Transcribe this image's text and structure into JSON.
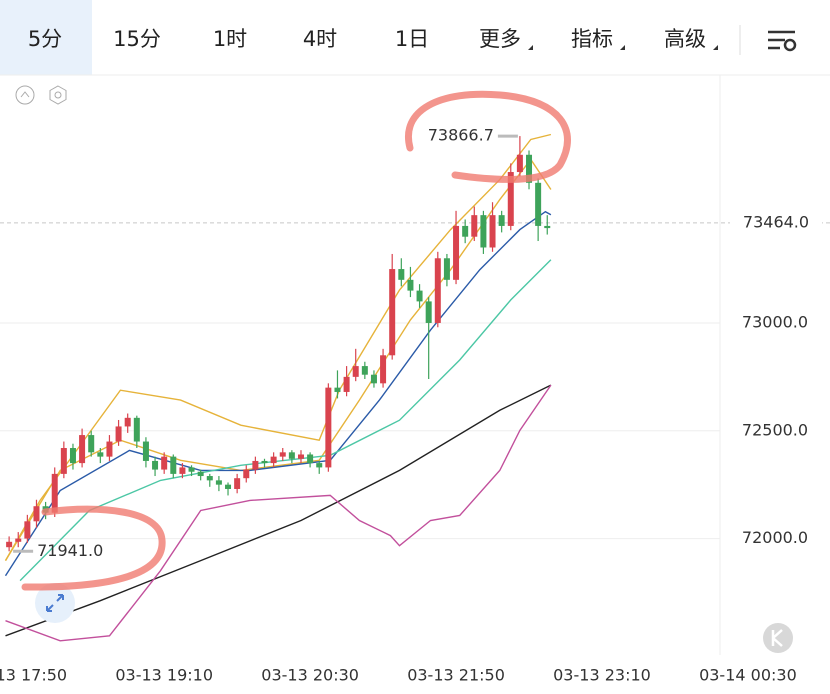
{
  "toolbar": {
    "tabs": [
      "5分",
      "15分",
      "1时",
      "4时",
      "1日",
      "更多",
      "指标",
      "高级"
    ],
    "active": 0
  },
  "chart_data": {
    "type": "candlestick",
    "x": [
      -5,
      0,
      5,
      10,
      15,
      20,
      25,
      30,
      35,
      40,
      45,
      50,
      55,
      60,
      65,
      70,
      75,
      80,
      85,
      90,
      95,
      100,
      105,
      110,
      115,
      120,
      125,
      130,
      135,
      140,
      145,
      150,
      155,
      160,
      165,
      170,
      175,
      180,
      185,
      190,
      195,
      200,
      205,
      210,
      215,
      220,
      225,
      230,
      235,
      240,
      245,
      250,
      255,
      260,
      265,
      270,
      275,
      280,
      285,
      290
    ],
    "open": [
      71960,
      71985,
      72000,
      72080,
      72150,
      72120,
      72300,
      72420,
      72350,
      72480,
      72400,
      72380,
      72450,
      72520,
      72560,
      72450,
      72360,
      72320,
      72380,
      72300,
      72330,
      72310,
      72290,
      72270,
      72250,
      72230,
      72280,
      72320,
      72360,
      72350,
      72380,
      72400,
      72370,
      72390,
      72350,
      72330,
      72700,
      72680,
      72750,
      72800,
      72760,
      72720,
      72850,
      73250,
      73200,
      73150,
      73100,
      73000,
      73300,
      73200,
      73450,
      73400,
      73500,
      73350,
      73500,
      73450,
      73700,
      73780,
      73650,
      73450
    ],
    "high": [
      72010,
      72030,
      72110,
      72180,
      72170,
      72330,
      72450,
      72440,
      72510,
      72500,
      72420,
      72480,
      72550,
      72580,
      72570,
      72470,
      72380,
      72400,
      72390,
      72350,
      72340,
      72320,
      72300,
      72290,
      72260,
      72300,
      72340,
      72380,
      72370,
      72400,
      72420,
      72410,
      72410,
      72400,
      72360,
      72720,
      72780,
      72800,
      72880,
      72820,
      72780,
      72880,
      73320,
      73300,
      73260,
      73180,
      73120,
      73330,
      73320,
      73520,
      73480,
      73540,
      73520,
      73560,
      73520,
      73740,
      73866.7,
      73800,
      73670,
      73500
    ],
    "low": [
      71941.0,
      71960,
      71980,
      72050,
      72090,
      72100,
      72280,
      72320,
      72330,
      72380,
      72350,
      72360,
      72430,
      72490,
      72420,
      72330,
      72290,
      72300,
      72280,
      72280,
      72290,
      72270,
      72240,
      72220,
      72200,
      72210,
      72260,
      72300,
      72330,
      72330,
      72360,
      72350,
      72350,
      72330,
      72300,
      72310,
      72650,
      72660,
      72730,
      72740,
      72700,
      72700,
      72830,
      73170,
      73120,
      73070,
      72740,
      72980,
      73170,
      73180,
      73370,
      73380,
      73320,
      73330,
      73420,
      73430,
      73680,
      73620,
      73380,
      73410
    ],
    "close": [
      71985,
      72000,
      72080,
      72150,
      72120,
      72300,
      72420,
      72350,
      72480,
      72400,
      72380,
      72450,
      72520,
      72560,
      72450,
      72360,
      72320,
      72380,
      72300,
      72330,
      72310,
      72290,
      72270,
      72250,
      72230,
      72280,
      72320,
      72360,
      72350,
      72380,
      72400,
      72370,
      72390,
      72350,
      72330,
      72700,
      72680,
      72750,
      72800,
      72760,
      72720,
      72850,
      73250,
      73200,
      73150,
      73100,
      73000,
      73300,
      73200,
      73450,
      73400,
      73500,
      73350,
      73500,
      73450,
      73700,
      73780,
      73650,
      73450,
      73440
    ],
    "up_color": "#d9434e",
    "down_color": "#3ea35a",
    "series": [
      {
        "color": "#e6b33a",
        "x": [
          -7,
          12,
          56,
          89,
          122,
          165,
          176,
          209,
          237,
          264,
          281,
          292
        ],
        "values": [
          71898,
          72177,
          72688,
          72642,
          72526,
          72456,
          72688,
          73153,
          73433,
          73665,
          73851,
          73874
        ]
      },
      {
        "color": "#e6b33a",
        "x": [
          -7,
          23,
          56,
          89,
          122,
          165,
          187,
          215,
          237,
          264,
          281,
          292
        ],
        "values": [
          71898,
          72316,
          72456,
          72363,
          72316,
          72363,
          72642,
          73014,
          73247,
          73572,
          73758,
          73619
        ]
      },
      {
        "color": "#2b5ba8",
        "x": [
          -7,
          23,
          61,
          100,
          127,
          171,
          198,
          226,
          253,
          275,
          289,
          292
        ],
        "values": [
          71828,
          72223,
          72409,
          72316,
          72316,
          72363,
          72642,
          72967,
          73247,
          73433,
          73516,
          73502
        ]
      },
      {
        "color": "#4cc7a5",
        "x": [
          1,
          39,
          78,
          122,
          171,
          209,
          242,
          270,
          292
        ],
        "values": [
          71805,
          72130,
          72270,
          72340,
          72386,
          72549,
          72828,
          73107,
          73293
        ]
      },
      {
        "color": "#222222",
        "x": [
          -7,
          45,
          100,
          155,
          209,
          264,
          292
        ],
        "values": [
          71549,
          71712,
          71898,
          72084,
          72316,
          72595,
          72712
        ]
      },
      {
        "color": "#c2509c",
        "x": [
          -7,
          23,
          50,
          78,
          100,
          127,
          171,
          187,
          204,
          209,
          226,
          242,
          264,
          275,
          292
        ],
        "values": [
          71619,
          71526,
          71549,
          71851,
          72130,
          72177,
          72200,
          72084,
          72014,
          71967,
          72084,
          72107,
          72316,
          72502,
          72712
        ]
      }
    ],
    "xlim": [
      -10,
      445
    ],
    "xticks": [
      {
        "value": 0,
        "label": "03-13 17:50"
      },
      {
        "value": 80,
        "label": "03-13 19:10"
      },
      {
        "value": 160,
        "label": "03-13 20:30"
      },
      {
        "value": 240,
        "label": "03-13 21:50"
      },
      {
        "value": 320,
        "label": "03-13 23:10"
      },
      {
        "value": 400,
        "label": "03-14 00:30"
      }
    ],
    "ylim": [
      71460,
      74150
    ],
    "yticks": [
      {
        "value": 72000,
        "label": "72000.0"
      },
      {
        "value": 72500,
        "label": "72500.0"
      },
      {
        "value": 73000,
        "label": "73000.0"
      }
    ],
    "last_price": {
      "value": 73464,
      "label": "73464.0"
    },
    "annotations": [
      {
        "x": 275,
        "value": 73866.7,
        "label": "73866.7"
      },
      {
        "x": -5,
        "value": 71941.0,
        "label": "71941.0"
      }
    ],
    "grid": true
  }
}
